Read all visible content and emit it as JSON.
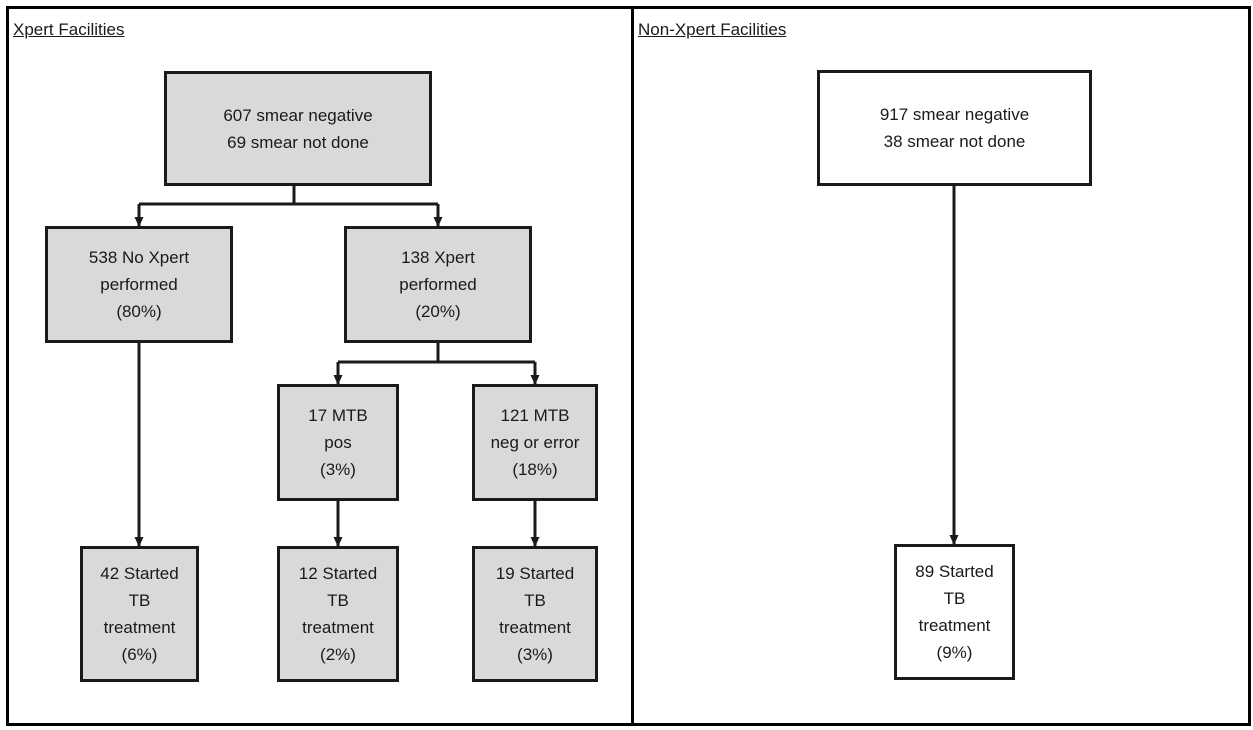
{
  "panels": {
    "left": {
      "title": "Xpert Facilities"
    },
    "right": {
      "title": "Non-Xpert Facilities"
    }
  },
  "nodes": {
    "xpert_top": {
      "lines": [
        "607 smear negative",
        "69 smear not done"
      ]
    },
    "no_xpert": {
      "lines": [
        "538 No Xpert",
        "performed",
        "(80%)"
      ]
    },
    "xpert_performed": {
      "lines": [
        "138 Xpert",
        "performed",
        "(20%)"
      ]
    },
    "mtb_pos": {
      "lines": [
        "17 MTB",
        "pos",
        "(3%)"
      ]
    },
    "mtb_neg": {
      "lines": [
        "121 MTB",
        "neg or error",
        "(18%)"
      ]
    },
    "no_xpert_started": {
      "lines": [
        "42 Started",
        "TB",
        "treatment",
        "(6%)"
      ]
    },
    "mtb_pos_started": {
      "lines": [
        "12 Started",
        "TB",
        "treatment",
        "(2%)"
      ]
    },
    "mtb_neg_started": {
      "lines": [
        "19 Started",
        "TB",
        "treatment",
        "(3%)"
      ]
    },
    "nonxpert_top": {
      "lines": [
        "917 smear negative",
        "38 smear not done"
      ]
    },
    "nonxpert_started": {
      "lines": [
        "89 Started",
        "TB",
        "treatment",
        "(9%)"
      ]
    }
  },
  "colors": {
    "box_fill": "#d9d9d9",
    "box_fill_white": "#ffffff",
    "border": "#1a1a1a"
  }
}
